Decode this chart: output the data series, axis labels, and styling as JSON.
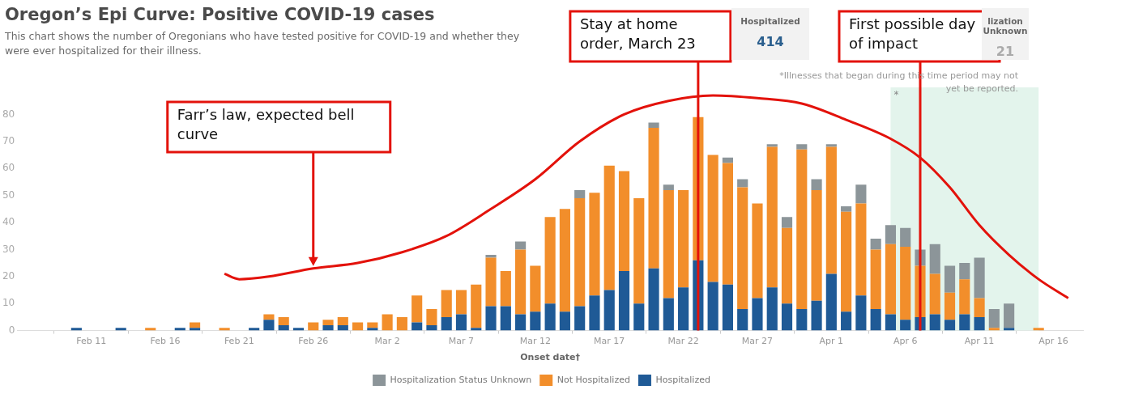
{
  "chart_data": {
    "type": "bar",
    "title": "Oregon’s Epi Curve: Positive COVID-19 cases",
    "subtitle": "This chart shows the number of Oregonians who have tested positive for COVID-19 and whether they were ever hospitalized for their illness.",
    "xlabel": "Onset date†",
    "stacked": true,
    "grid": false,
    "legend": "bottom",
    "x": [
      "--02-07",
      "--02-08",
      "--02-09",
      "--02-10",
      "--02-11",
      "--02-12",
      "--02-13",
      "--02-14",
      "--02-15",
      "--02-16",
      "--02-17",
      "--02-18",
      "--02-19",
      "--02-20",
      "--02-21",
      "--02-22",
      "--02-23",
      "--02-24",
      "--02-25",
      "--02-26",
      "--02-27",
      "--02-28",
      "--02-29",
      "--03-01",
      "--03-02",
      "--03-03",
      "--03-04",
      "--03-05",
      "--03-06",
      "--03-07",
      "--03-08",
      "--03-09",
      "--03-10",
      "--03-11",
      "--03-12",
      "--03-13",
      "--03-14",
      "--03-15",
      "--03-16",
      "--03-17",
      "--03-18",
      "--03-19",
      "--03-20",
      "--03-21",
      "--03-22",
      "--03-23",
      "--03-24",
      "--03-25",
      "--03-26",
      "--03-27",
      "--03-28",
      "--03-29",
      "--03-30",
      "--03-31",
      "--04-01",
      "--04-02",
      "--04-03",
      "--04-04",
      "--04-05",
      "--04-06",
      "--04-07",
      "--04-08",
      "--04-09",
      "--04-10",
      "--04-11",
      "--04-12",
      "--04-13",
      "--04-14",
      "--04-15",
      "--04-16",
      "--04-17"
    ],
    "xlim": [
      "--02-06",
      "--04-18"
    ],
    "xticks": [
      {
        "value": "--02-11",
        "label": "Feb 11"
      },
      {
        "value": "--02-16",
        "label": "Feb 16"
      },
      {
        "value": "--02-21",
        "label": "Feb 21"
      },
      {
        "value": "--02-26",
        "label": "Feb 26"
      },
      {
        "value": "--03-02",
        "label": "Mar 2"
      },
      {
        "value": "--03-07",
        "label": "Mar 7"
      },
      {
        "value": "--03-12",
        "label": "Mar 12"
      },
      {
        "value": "--03-17",
        "label": "Mar 17"
      },
      {
        "value": "--03-22",
        "label": "Mar 22"
      },
      {
        "value": "--03-27",
        "label": "Mar 27"
      },
      {
        "value": "--04-01",
        "label": "Apr 1"
      },
      {
        "value": "--04-06",
        "label": "Apr 6"
      },
      {
        "value": "--04-11",
        "label": "Apr 11"
      },
      {
        "value": "--04-16",
        "label": "Apr 16"
      }
    ],
    "ylim": [
      0,
      90
    ],
    "yticks": [
      0,
      10,
      20,
      30,
      40,
      50,
      60,
      70,
      80
    ],
    "series": [
      {
        "name": "Hospitalized",
        "color": "#1f5a96",
        "values": [
          0,
          0,
          0,
          1,
          0,
          0,
          1,
          0,
          0,
          0,
          1,
          1,
          0,
          0,
          0,
          1,
          4,
          2,
          1,
          0,
          2,
          2,
          0,
          1,
          0,
          0,
          3,
          2,
          5,
          6,
          1,
          9,
          9,
          6,
          7,
          10,
          7,
          9,
          13,
          15,
          22,
          10,
          23,
          12,
          16,
          26,
          18,
          17,
          8,
          12,
          16,
          10,
          8,
          11,
          21,
          7,
          13,
          8,
          6,
          4,
          5,
          6,
          4,
          6,
          5,
          0,
          1,
          0,
          0,
          0,
          0
        ]
      },
      {
        "name": "Not Hospitalized",
        "color": "#f28e2b",
        "values": [
          0,
          0,
          0,
          0,
          0,
          0,
          0,
          0,
          1,
          0,
          0,
          2,
          0,
          1,
          0,
          0,
          2,
          3,
          0,
          3,
          2,
          3,
          3,
          2,
          6,
          5,
          10,
          6,
          10,
          9,
          16,
          18,
          13,
          24,
          17,
          32,
          38,
          40,
          38,
          46,
          37,
          39,
          52,
          40,
          36,
          53,
          47,
          45,
          45,
          35,
          52,
          28,
          59,
          41,
          47,
          37,
          34,
          22,
          26,
          27,
          19,
          15,
          10,
          13,
          7,
          1,
          0,
          0,
          1,
          0,
          0
        ]
      },
      {
        "name": "Hospitalization Status Unknown",
        "color": "#8c9599",
        "values": [
          0,
          0,
          0,
          0,
          0,
          0,
          0,
          0,
          0,
          0,
          0,
          0,
          0,
          0,
          0,
          0,
          0,
          0,
          0,
          0,
          0,
          0,
          0,
          0,
          0,
          0,
          0,
          0,
          0,
          0,
          0,
          1,
          0,
          3,
          0,
          0,
          0,
          3,
          0,
          0,
          0,
          0,
          2,
          2,
          0,
          0,
          0,
          2,
          3,
          0,
          1,
          4,
          2,
          4,
          1,
          2,
          7,
          4,
          7,
          7,
          6,
          11,
          10,
          6,
          15,
          7,
          9,
          0,
          0,
          0,
          0
        ]
      },
      {
        "type": "line",
        "color": "#e3120b",
        "x": [
          "--02-20",
          "--02-21",
          "--02-23",
          "--02-26",
          "--02-29",
          "--03-03",
          "--03-06",
          "--03-09",
          "--03-12",
          "--03-15",
          "--03-18",
          "--03-21",
          "--03-24",
          "--03-27",
          "--03-30",
          "--04-02",
          "--04-05",
          "--04-07",
          "--04-09",
          "--04-11",
          "--04-13",
          "--04-15",
          "--04-17"
        ],
        "values": [
          21,
          19,
          20,
          23,
          25,
          29,
          35,
          45,
          56,
          70,
          80,
          85,
          87,
          86,
          84,
          78,
          71,
          64,
          53,
          39,
          28,
          19,
          12
        ]
      }
    ],
    "bands": [
      {
        "axis": "x",
        "from": "--04-05",
        "to": "--04-15",
        "label": "*",
        "color": "#e3f4ec"
      }
    ],
    "ref_lines": [
      {
        "axis": "x",
        "value": "--03-23",
        "label": "Stay at home order, March 23",
        "color": "#e3120b"
      },
      {
        "axis": "x",
        "value": "--04-07",
        "label": "First possible day of impact",
        "color": "#e3120b"
      }
    ],
    "annotations": [
      "*Illnesses that began during this time period may not yet be reported.",
      "Hospitalized",
      "414",
      "lization Unknown",
      "21",
      "Farr’s law, expected bell curve"
    ]
  }
}
